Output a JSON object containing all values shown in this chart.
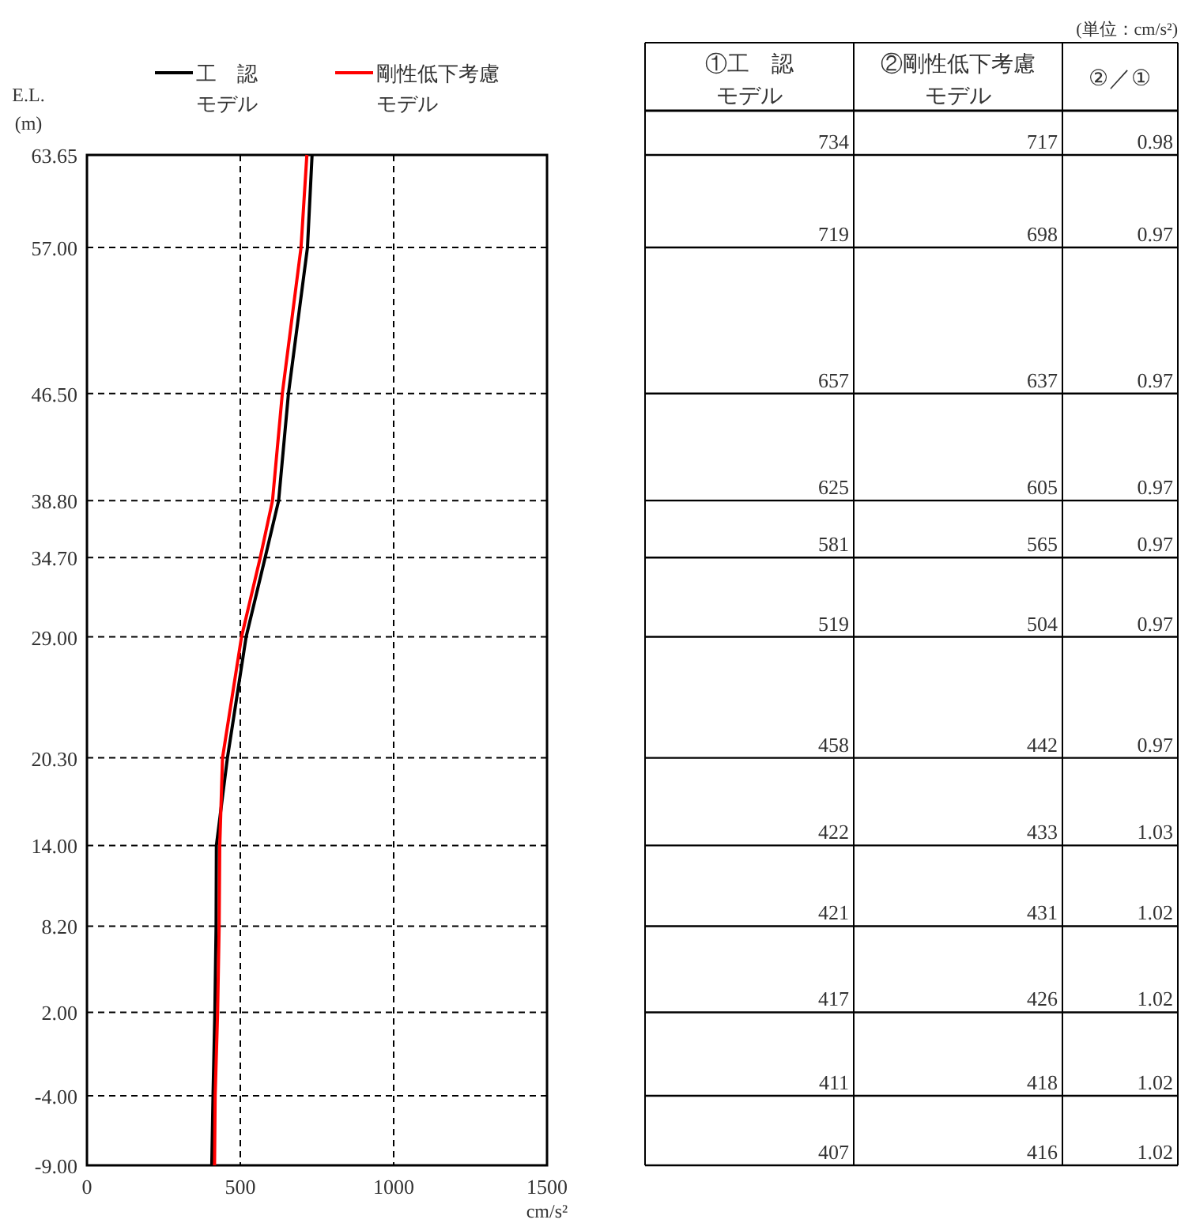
{
  "chart_data": [
    {
      "type": "line",
      "orientation": "horizontal",
      "xlabel": "cm/s²",
      "ylabel": "E.L.\n(m)",
      "x": [
        63.65,
        57.0,
        46.5,
        38.8,
        34.7,
        29.0,
        20.3,
        14.0,
        8.2,
        2.0,
        -4.0,
        -9.0
      ],
      "series": [
        {
          "name": "工　認モデル",
          "color": "#000000",
          "values": [
            734,
            719,
            657,
            625,
            581,
            519,
            458,
            422,
            421,
            417,
            411,
            407
          ]
        },
        {
          "name": "剛性低下考慮モデル",
          "color": "#ff0000",
          "values": [
            717,
            698,
            637,
            605,
            565,
            504,
            442,
            433,
            431,
            426,
            418,
            416
          ]
        }
      ],
      "xlim": [
        0,
        1500
      ],
      "xticks": [
        0,
        500,
        1000,
        1500
      ],
      "ylim": [
        -9,
        63.65
      ],
      "yticks": [
        {
          "value": 63.65,
          "label": "63.65"
        },
        {
          "value": 57,
          "label": "57.00"
        },
        {
          "value": 46.5,
          "label": "46.50"
        },
        {
          "value": 38.8,
          "label": "38.80"
        },
        {
          "value": 34.7,
          "label": "34.70"
        },
        {
          "value": 29,
          "label": "29.00"
        },
        {
          "value": 20.3,
          "label": "20.30"
        },
        {
          "value": 14,
          "label": "14.00"
        },
        {
          "value": 8.2,
          "label": "8.20"
        },
        {
          "value": 2,
          "label": "2.00"
        },
        {
          "value": -4,
          "label": "-4.00"
        },
        {
          "value": -9,
          "label": "-9.00"
        }
      ],
      "grid": true,
      "line_style": "solid",
      "marker": "none",
      "legend": "top"
    },
    {
      "type": "other",
      "annotations": [
        "(単位：cm/s²)",
        "①工　認モデル",
        "②剛性低下考慮モデル",
        "②／①",
        "734",
        "717",
        "0.98",
        "719",
        "698",
        "0.97",
        "657",
        "637",
        "0.97",
        "625",
        "605",
        "0.97",
        "581",
        "565",
        "0.97",
        "519",
        "504",
        "0.97",
        "458",
        "442",
        "0.97",
        "422",
        "433",
        "1.03",
        "421",
        "431",
        "1.02",
        "417",
        "426",
        "1.02",
        "411",
        "418",
        "1.02",
        "407",
        "416",
        "1.02"
      ]
    }
  ]
}
